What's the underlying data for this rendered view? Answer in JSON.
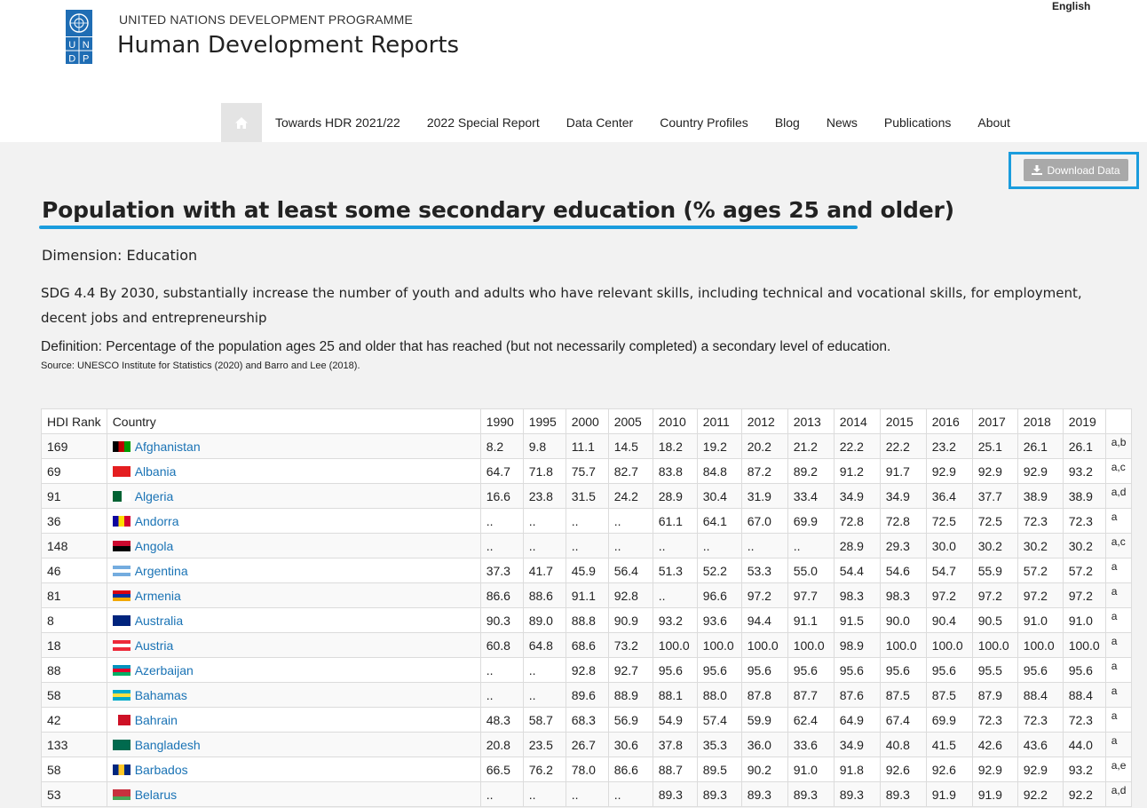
{
  "header": {
    "org_name": "UNITED NATIONS DEVELOPMENT PROGRAMME",
    "site_title": "Human Development Reports",
    "language": "English",
    "logo_letters": [
      "U",
      "N",
      "D",
      "P"
    ]
  },
  "nav": {
    "home_icon": "home-icon",
    "items": [
      "Towards HDR 2021/22",
      "2022 Special Report",
      "Data Center",
      "Country Profiles",
      "Blog",
      "News",
      "Publications",
      "About"
    ]
  },
  "toolbar": {
    "download_label": "Download Data",
    "download_icon": "download-icon"
  },
  "page": {
    "title": "Population with at least some secondary education (% ages 25 and older)",
    "dimension": "Dimension: Education",
    "sdg": "SDG 4.4 By 2030, substantially increase the number of youth and adults who have relevant skills, including technical and vocational skills, for employment, decent jobs and entrepreneurship",
    "definition": "Definition: Percentage of the population ages 25 and older that has reached (but not necessarily completed) a secondary level of education.",
    "source": "Source: UNESCO Institute for Statistics (2020) and Barro and Lee (2018)."
  },
  "colors": {
    "accent": "#1a9cdd",
    "link": "#1a73b5",
    "button": "#a9a9a9"
  },
  "table": {
    "headers": [
      "HDI Rank",
      "Country",
      "1990",
      "1995",
      "2000",
      "2005",
      "2010",
      "2011",
      "2012",
      "2013",
      "2014",
      "2015",
      "2016",
      "2017",
      "2018",
      "2019",
      ""
    ],
    "rows": [
      {
        "rank": "169",
        "country": "Afghanistan",
        "values": [
          "8.2",
          "9.8",
          "11.1",
          "14.5",
          "18.2",
          "19.2",
          "20.2",
          "21.2",
          "22.2",
          "22.2",
          "23.2",
          "25.1",
          "26.1",
          "26.1"
        ],
        "note": "a,b"
      },
      {
        "rank": "69",
        "country": "Albania",
        "values": [
          "64.7",
          "71.8",
          "75.7",
          "82.7",
          "83.8",
          "84.8",
          "87.2",
          "89.2",
          "91.2",
          "91.7",
          "92.9",
          "92.9",
          "92.9",
          "93.2"
        ],
        "note": "a,c"
      },
      {
        "rank": "91",
        "country": "Algeria",
        "values": [
          "16.6",
          "23.8",
          "31.5",
          "24.2",
          "28.9",
          "30.4",
          "31.9",
          "33.4",
          "34.9",
          "34.9",
          "36.4",
          "37.7",
          "38.9",
          "38.9"
        ],
        "note": "a,d"
      },
      {
        "rank": "36",
        "country": "Andorra",
        "values": [
          "..",
          "..",
          "..",
          "..",
          "61.1",
          "64.1",
          "67.0",
          "69.9",
          "72.8",
          "72.8",
          "72.5",
          "72.5",
          "72.3",
          "72.3"
        ],
        "note": "a"
      },
      {
        "rank": "148",
        "country": "Angola",
        "values": [
          "..",
          "..",
          "..",
          "..",
          "..",
          "..",
          "..",
          "..",
          "28.9",
          "29.3",
          "30.0",
          "30.2",
          "30.2",
          "30.2"
        ],
        "note": "a,c"
      },
      {
        "rank": "46",
        "country": "Argentina",
        "values": [
          "37.3",
          "41.7",
          "45.9",
          "56.4",
          "51.3",
          "52.2",
          "53.3",
          "55.0",
          "54.4",
          "54.6",
          "54.7",
          "55.9",
          "57.2",
          "57.2"
        ],
        "note": "a"
      },
      {
        "rank": "81",
        "country": "Armenia",
        "values": [
          "86.6",
          "88.6",
          "91.1",
          "92.8",
          "..",
          "96.6",
          "97.2",
          "97.7",
          "98.3",
          "98.3",
          "97.2",
          "97.2",
          "97.2",
          "97.2"
        ],
        "note": "a"
      },
      {
        "rank": "8",
        "country": "Australia",
        "values": [
          "90.3",
          "89.0",
          "88.8",
          "90.9",
          "93.2",
          "93.6",
          "94.4",
          "91.1",
          "91.5",
          "90.0",
          "90.4",
          "90.5",
          "91.0",
          "91.0"
        ],
        "note": "a"
      },
      {
        "rank": "18",
        "country": "Austria",
        "values": [
          "60.8",
          "64.8",
          "68.6",
          "73.2",
          "100.0",
          "100.0",
          "100.0",
          "100.0",
          "98.9",
          "100.0",
          "100.0",
          "100.0",
          "100.0",
          "100.0"
        ],
        "note": "a"
      },
      {
        "rank": "88",
        "country": "Azerbaijan",
        "values": [
          "..",
          "..",
          "92.8",
          "92.7",
          "95.6",
          "95.6",
          "95.6",
          "95.6",
          "95.6",
          "95.6",
          "95.6",
          "95.5",
          "95.6",
          "95.6"
        ],
        "note": "a"
      },
      {
        "rank": "58",
        "country": "Bahamas",
        "values": [
          "..",
          "..",
          "89.6",
          "88.9",
          "88.1",
          "88.0",
          "87.8",
          "87.7",
          "87.6",
          "87.5",
          "87.5",
          "87.9",
          "88.4",
          "88.4"
        ],
        "note": "a"
      },
      {
        "rank": "42",
        "country": "Bahrain",
        "values": [
          "48.3",
          "58.7",
          "68.3",
          "56.9",
          "54.9",
          "57.4",
          "59.9",
          "62.4",
          "64.9",
          "67.4",
          "69.9",
          "72.3",
          "72.3",
          "72.3"
        ],
        "note": "a"
      },
      {
        "rank": "133",
        "country": "Bangladesh",
        "values": [
          "20.8",
          "23.5",
          "26.7",
          "30.6",
          "37.8",
          "35.3",
          "36.0",
          "33.6",
          "34.9",
          "40.8",
          "41.5",
          "42.6",
          "43.6",
          "44.0"
        ],
        "note": "a"
      },
      {
        "rank": "58",
        "country": "Barbados",
        "values": [
          "66.5",
          "76.2",
          "78.0",
          "86.6",
          "88.7",
          "89.5",
          "90.2",
          "91.0",
          "91.8",
          "92.6",
          "92.6",
          "92.9",
          "92.9",
          "93.2"
        ],
        "note": "a,e"
      },
      {
        "rank": "53",
        "country": "Belarus",
        "values": [
          "..",
          "..",
          "..",
          "..",
          "89.3",
          "89.3",
          "89.3",
          "89.3",
          "89.3",
          "89.3",
          "91.9",
          "91.9",
          "92.2",
          "92.2"
        ],
        "note": "a,d"
      }
    ]
  }
}
